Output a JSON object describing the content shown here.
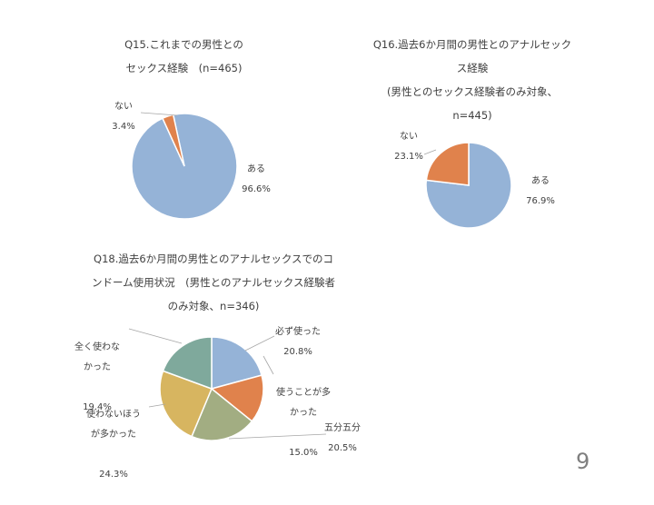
{
  "page_number": "9",
  "chart_data": [
    {
      "type": "pie",
      "title": "Q15.これまでの男性との\nセックス経験　(n=465)",
      "categories": [
        "ある",
        "ない"
      ],
      "values": [
        96.6,
        3.4
      ],
      "value_labels": [
        "96.6%",
        "3.4%"
      ],
      "colors": [
        "#95B3D7",
        "#E0824C"
      ]
    },
    {
      "type": "pie",
      "title": "Q16.過去6か月間の男性とのアナルセック\nス経験\n(男性とのセックス経験者のみ対象、\nn=445)",
      "categories": [
        "ある",
        "ない"
      ],
      "values": [
        76.9,
        23.1
      ],
      "value_labels": [
        "76.9%",
        "23.1%"
      ],
      "colors": [
        "#95B3D7",
        "#E0824C"
      ]
    },
    {
      "type": "pie",
      "title": "Q18.過去6か月間の男性とのアナルセックスでのコ\nンドーム使用状況　(男性とのアナルセックス経験者\nのみ対象、n=346)",
      "categories": [
        "必ず使った",
        "使うことが多\nかった",
        "五分五分",
        "使わないほう\nが多かった",
        "全く使わな\nかった"
      ],
      "values": [
        20.8,
        15.0,
        20.5,
        24.3,
        19.4
      ],
      "value_labels": [
        "20.8%",
        "15.0%",
        "20.5%",
        "24.3%",
        "19.4%"
      ],
      "colors": [
        "#95B3D7",
        "#E0824C",
        "#A2AD82",
        "#D7B560",
        "#7FA99C"
      ]
    }
  ]
}
